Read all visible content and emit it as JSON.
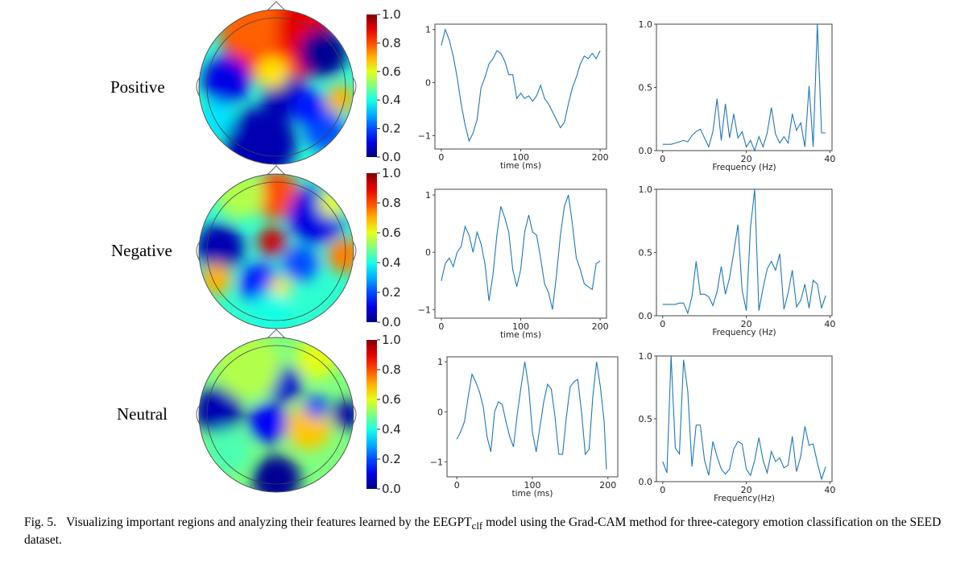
{
  "figure": {
    "rows": [
      {
        "label": "Positive"
      },
      {
        "label": "Negative"
      },
      {
        "label": "Neutral"
      }
    ],
    "colorbar": {
      "colormap": "jet",
      "ticks": [
        "0.0",
        "0.2",
        "0.4",
        "0.6",
        "0.8",
        "1.0"
      ]
    },
    "line_color": "#1f77b4",
    "caption": {
      "number": "Fig. 5.",
      "text_before": "Visualizing important regions and analyzing their features learned by the ",
      "model_main": "EEGPT",
      "model_sub": "clf",
      "text_after": " model using the Grad-CAM method for three-category emotion classification on the SEED dataset."
    }
  },
  "chart_data": [
    {
      "type": "line",
      "row": "Positive",
      "xlabel": "time (ms)",
      "ylabel": "",
      "xlim": [
        0,
        200
      ],
      "ylim": [
        -1.2,
        1.1
      ],
      "xticks": [
        "0",
        "100",
        "200"
      ],
      "yticks": [
        "-1",
        "0",
        "1"
      ],
      "x": [
        0,
        5,
        10,
        15,
        20,
        25,
        30,
        35,
        40,
        45,
        50,
        55,
        60,
        65,
        70,
        75,
        80,
        85,
        90,
        95,
        100,
        105,
        110,
        115,
        120,
        125,
        130,
        135,
        140,
        145,
        150,
        155,
        160,
        165,
        170,
        175,
        180,
        185,
        190,
        195,
        200
      ],
      "y": [
        0.7,
        1.0,
        0.8,
        0.5,
        0.1,
        -0.4,
        -0.8,
        -1.1,
        -0.95,
        -0.7,
        -0.1,
        0.1,
        0.35,
        0.45,
        0.6,
        0.55,
        0.4,
        0.15,
        0.15,
        -0.3,
        -0.2,
        -0.3,
        -0.25,
        -0.35,
        -0.25,
        -0.05,
        -0.3,
        -0.4,
        -0.55,
        -0.7,
        -0.85,
        -0.75,
        -0.4,
        -0.1,
        0.1,
        0.35,
        0.5,
        0.45,
        0.55,
        0.45,
        0.6
      ]
    },
    {
      "type": "line",
      "row": "Positive",
      "xlabel": "Frequency (Hz)",
      "ylabel": "",
      "xlim": [
        -1.5,
        40.5
      ],
      "ylim": [
        0,
        1
      ],
      "xticks": [
        "0",
        "20",
        "40"
      ],
      "yticks": [
        "0.0",
        "0.5",
        "1.0"
      ],
      "x": [
        0,
        1,
        2,
        3,
        4,
        5,
        6,
        7,
        8,
        9,
        10,
        11,
        12,
        13,
        14,
        15,
        16,
        17,
        18,
        19,
        20,
        21,
        22,
        23,
        24,
        25,
        26,
        27,
        28,
        29,
        30,
        31,
        32,
        33,
        34,
        35,
        36,
        37,
        38,
        39
      ],
      "y": [
        0.05,
        0.05,
        0.05,
        0.06,
        0.07,
        0.08,
        0.07,
        0.12,
        0.15,
        0.17,
        0.1,
        0.03,
        0.15,
        0.41,
        0.08,
        0.37,
        0.1,
        0.29,
        0.1,
        0.15,
        0.03,
        0.08,
        0.0,
        0.11,
        0.03,
        0.14,
        0.34,
        0.13,
        0.06,
        0.11,
        0.06,
        0.29,
        0.16,
        0.22,
        0.03,
        0.51,
        0.03,
        1.0,
        0.14,
        0.14
      ]
    },
    {
      "type": "line",
      "row": "Negative",
      "xlabel": "time (ms)",
      "ylabel": "",
      "xlim": [
        0,
        200
      ],
      "ylim": [
        -1.1,
        1.1
      ],
      "xticks": [
        "0",
        "100",
        "200"
      ],
      "yticks": [
        "-1",
        "0",
        "1"
      ],
      "x": [
        0,
        5,
        10,
        15,
        20,
        25,
        30,
        35,
        40,
        45,
        50,
        55,
        60,
        65,
        70,
        75,
        80,
        85,
        90,
        95,
        100,
        105,
        110,
        115,
        120,
        125,
        130,
        135,
        140,
        145,
        150,
        155,
        160,
        165,
        170,
        175,
        180,
        185,
        190,
        195,
        200
      ],
      "y": [
        -0.5,
        -0.2,
        -0.1,
        -0.25,
        0.0,
        0.1,
        0.45,
        0.3,
        0.0,
        0.35,
        0.15,
        -0.2,
        -0.85,
        -0.4,
        0.3,
        0.8,
        0.6,
        0.35,
        -0.3,
        -0.6,
        -0.3,
        0.35,
        0.65,
        0.35,
        0.3,
        -0.1,
        -0.55,
        -0.7,
        -1.0,
        -0.4,
        0.3,
        0.8,
        1.0,
        0.5,
        -0.1,
        -0.3,
        -0.55,
        -0.6,
        -0.65,
        -0.2,
        -0.15
      ]
    },
    {
      "type": "line",
      "row": "Negative",
      "xlabel": "Frequency (Hz)",
      "ylabel": "",
      "xlim": [
        -1.5,
        40.5
      ],
      "ylim": [
        0,
        1
      ],
      "xticks": [
        "0",
        "20",
        "40"
      ],
      "yticks": [
        "0.0",
        "0.5",
        "1.0"
      ],
      "x": [
        0,
        1,
        2,
        3,
        4,
        5,
        6,
        7,
        8,
        9,
        10,
        11,
        12,
        13,
        14,
        15,
        16,
        17,
        18,
        19,
        20,
        21,
        22,
        23,
        24,
        25,
        26,
        27,
        28,
        29,
        30,
        31,
        32,
        33,
        34,
        35,
        36,
        37,
        38,
        39
      ],
      "y": [
        0.09,
        0.09,
        0.09,
        0.09,
        0.1,
        0.1,
        0.02,
        0.15,
        0.43,
        0.17,
        0.17,
        0.15,
        0.08,
        0.19,
        0.39,
        0.17,
        0.3,
        0.5,
        0.72,
        0.2,
        0.04,
        0.7,
        1.0,
        0.04,
        0.22,
        0.37,
        0.43,
        0.36,
        0.49,
        0.05,
        0.18,
        0.36,
        0.07,
        0.12,
        0.25,
        0.06,
        0.28,
        0.25,
        0.06,
        0.16
      ]
    },
    {
      "type": "line",
      "row": "Neutral",
      "xlabel": "time (ms)",
      "ylabel": "",
      "xlim": [
        -5,
        205
      ],
      "ylim": [
        -1.25,
        1.1
      ],
      "xticks": [
        "0",
        "100",
        "200"
      ],
      "yticks": [
        "-1",
        "0",
        "1"
      ],
      "x": [
        0,
        5,
        10,
        15,
        20,
        25,
        30,
        35,
        40,
        45,
        50,
        55,
        60,
        65,
        70,
        75,
        80,
        85,
        90,
        95,
        100,
        105,
        110,
        115,
        120,
        125,
        130,
        135,
        140,
        145,
        150,
        155,
        160,
        165,
        170,
        175,
        180,
        185,
        190,
        195,
        198
      ],
      "y": [
        -0.55,
        -0.4,
        -0.2,
        0.3,
        0.75,
        0.6,
        0.4,
        0.1,
        -0.5,
        -0.8,
        0.0,
        0.2,
        0.15,
        -0.2,
        -0.5,
        -0.7,
        -0.05,
        0.5,
        1.0,
        0.5,
        -0.4,
        -0.8,
        -0.3,
        0.2,
        0.55,
        0.45,
        -0.1,
        -0.85,
        -0.85,
        -0.1,
        0.5,
        0.6,
        0.65,
        0.0,
        -0.85,
        -0.75,
        0.3,
        1.0,
        0.5,
        -0.2,
        -1.15
      ]
    },
    {
      "type": "line",
      "row": "Neutral",
      "xlabel": "Frequency(Hz)",
      "ylabel": "",
      "xlim": [
        -1.5,
        40.5
      ],
      "ylim": [
        0,
        1
      ],
      "xticks": [
        "0",
        "20",
        "40"
      ],
      "yticks": [
        "0.0",
        "0.5",
        "1.0"
      ],
      "x": [
        0,
        1,
        2,
        3,
        4,
        5,
        6,
        7,
        8,
        9,
        10,
        11,
        12,
        13,
        14,
        15,
        16,
        17,
        18,
        19,
        20,
        21,
        22,
        23,
        24,
        25,
        26,
        27,
        28,
        29,
        30,
        31,
        32,
        33,
        34,
        35,
        36,
        37,
        38,
        39
      ],
      "y": [
        0.16,
        0.07,
        1.0,
        0.27,
        0.22,
        0.97,
        0.72,
        0.12,
        0.45,
        0.45,
        0.17,
        0.05,
        0.32,
        0.2,
        0.1,
        0.06,
        0.1,
        0.26,
        0.32,
        0.3,
        0.1,
        0.05,
        0.17,
        0.35,
        0.17,
        0.07,
        0.24,
        0.16,
        0.19,
        0.11,
        0.13,
        0.36,
        0.08,
        0.2,
        0.44,
        0.29,
        0.3,
        0.15,
        0.02,
        0.12
      ]
    }
  ]
}
